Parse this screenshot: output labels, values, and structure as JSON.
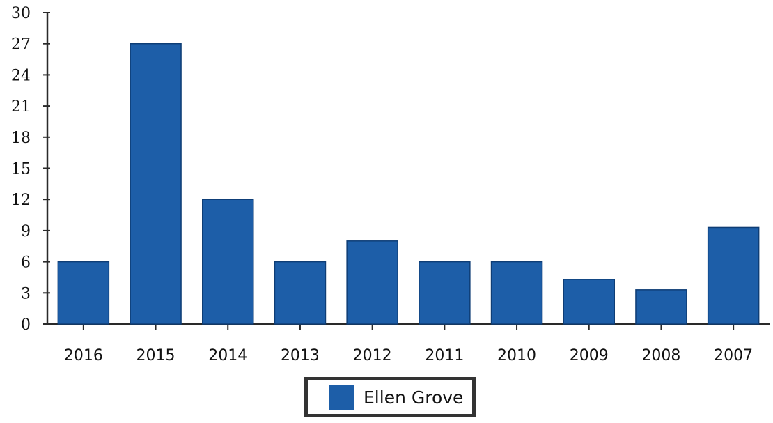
{
  "chart_data": {
    "type": "bar",
    "categories": [
      "2016",
      "2015",
      "2014",
      "2013",
      "2012",
      "2011",
      "2010",
      "2009",
      "2008",
      "2007"
    ],
    "series": [
      {
        "name": "Ellen Grove",
        "values": [
          6,
          27,
          12,
          6,
          8,
          6,
          6,
          4.3,
          3.3,
          9.3
        ]
      }
    ],
    "yticks": [
      "0",
      "3",
      "6",
      "9",
      "12",
      "15",
      "18",
      "21",
      "24",
      "27",
      "30"
    ],
    "ylim": [
      0,
      30
    ],
    "grid": false,
    "legend": "bottom-center",
    "colors": {
      "bar": "#1d5ea8",
      "bar_edge": "#0e3d75",
      "axis": "#2a2a2a",
      "text": "#111111"
    }
  }
}
